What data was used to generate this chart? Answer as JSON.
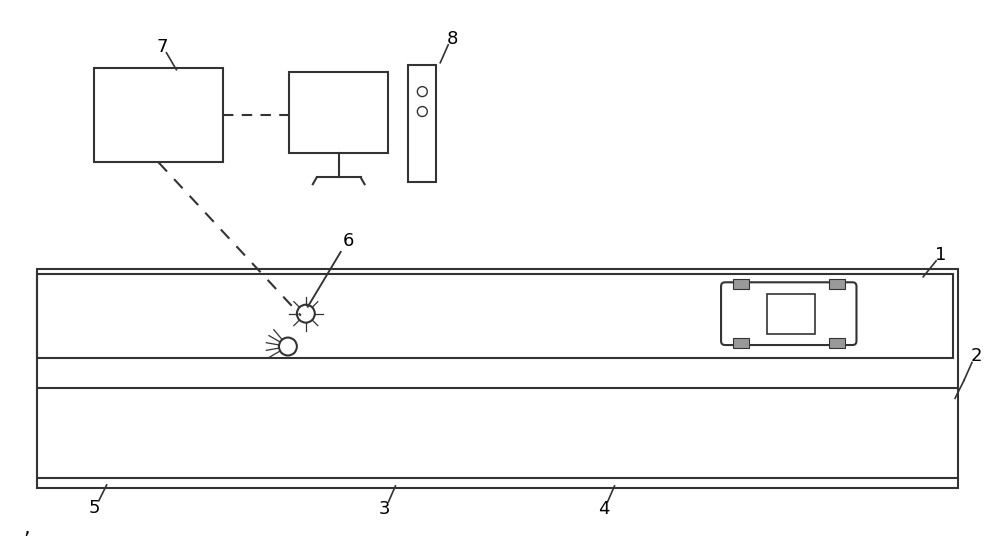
{
  "bg": "#ffffff",
  "lc": "#333333",
  "lw": 1.5,
  "fig_w": 10.0,
  "fig_h": 5.4
}
